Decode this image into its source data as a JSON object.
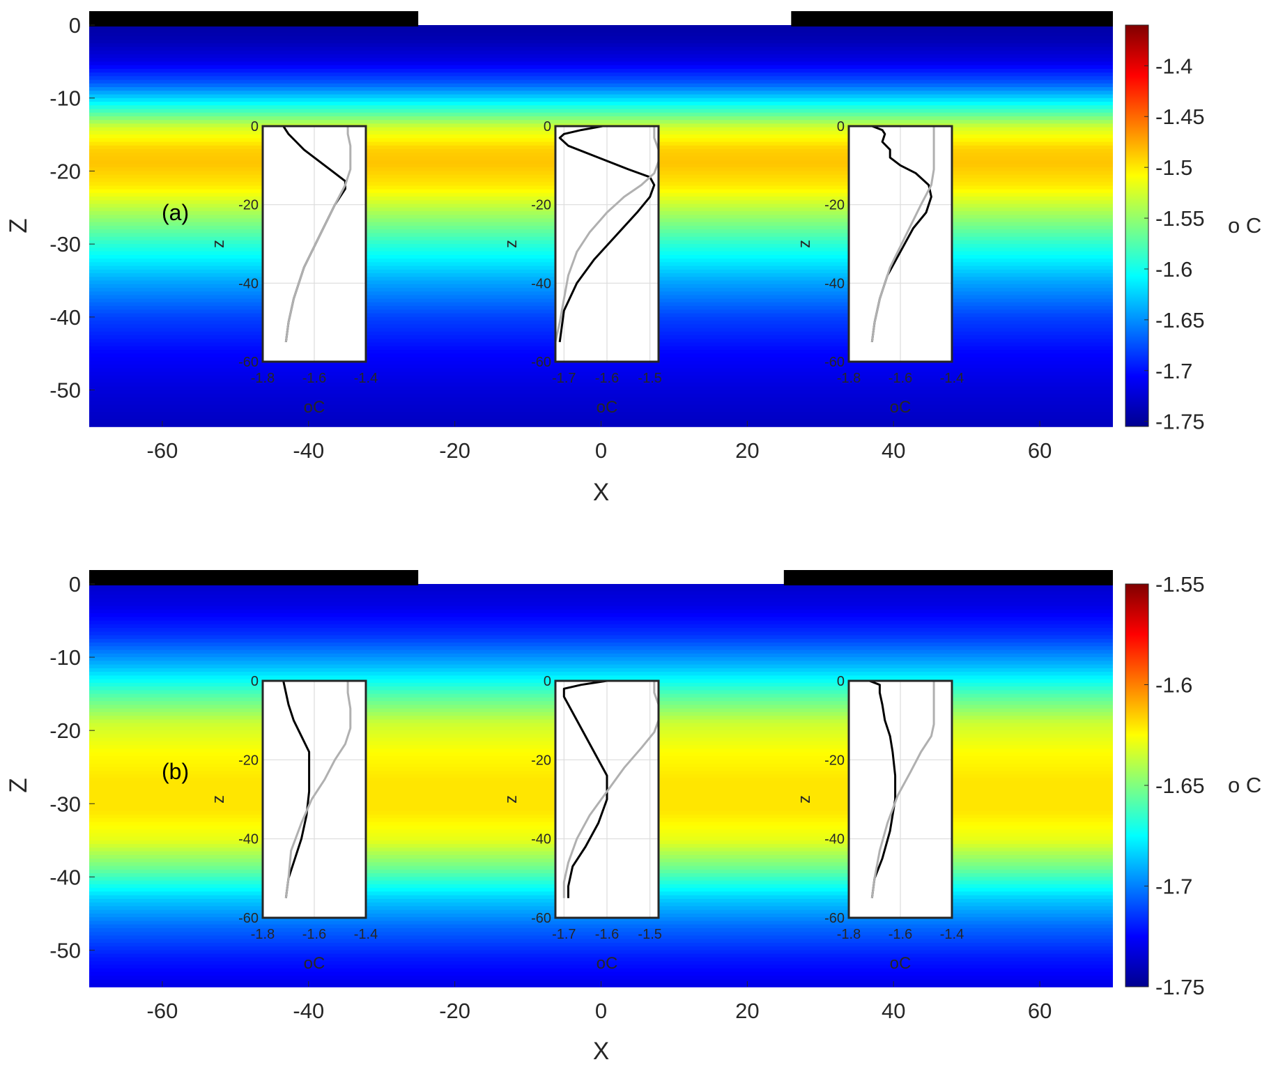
{
  "chart_data": [
    {
      "type": "heatmap",
      "panel_label": "(a)",
      "xlabel": "X",
      "ylabel": "Z",
      "xlim": [
        -70,
        70
      ],
      "ylim": [
        -55,
        0
      ],
      "x_ticks": [
        -60,
        -40,
        -20,
        0,
        20,
        40,
        60
      ],
      "y_ticks": [
        0,
        -10,
        -20,
        -30,
        -40,
        -50
      ],
      "ice_shelves": [
        [
          -70,
          -25
        ],
        [
          26,
          70
        ]
      ],
      "colorbar": {
        "unit": "o C",
        "range": [
          -1.755,
          -1.36
        ],
        "ticks": [
          -1.4,
          -1.45,
          -1.5,
          -1.55,
          -1.6,
          -1.65,
          -1.7,
          -1.75
        ],
        "tick_labels": [
          "-1.4",
          "-1.45",
          "-1.5",
          "-1.55",
          "-1.6",
          "-1.65",
          "-1.7",
          "-1.75"
        ]
      },
      "field_profile": {
        "z": [
          0,
          -2,
          -5,
          -8,
          -11,
          -14,
          -17,
          -19,
          -22,
          -26,
          -30,
          -35,
          -40,
          -45,
          -50,
          -55
        ],
        "value": [
          -1.74,
          -1.735,
          -1.715,
          -1.67,
          -1.6,
          -1.525,
          -1.49,
          -1.485,
          -1.5,
          -1.545,
          -1.59,
          -1.64,
          -1.68,
          -1.705,
          -1.72,
          -1.73
        ]
      },
      "insets": [
        {
          "xlabel": "oC",
          "ylabel": "z",
          "x_ticks": [
            "-1.8",
            "-1.6",
            "-1.4"
          ],
          "xlim": [
            -1.8,
            -1.4
          ],
          "y_ticks": [
            "0",
            "-20",
            "-40",
            "-60"
          ],
          "ylim": [
            -60,
            0
          ],
          "series": [
            {
              "color": "#000000",
              "x": [
                -1.72,
                -1.7,
                -1.67,
                -1.64,
                -1.6,
                -1.56,
                -1.52,
                -1.48,
                -1.48,
                -1.52,
                -1.58,
                -1.64,
                -1.68,
                -1.7,
                -1.71
              ],
              "z": [
                0,
                -2,
                -4,
                -6,
                -8,
                -10,
                -12,
                -14,
                -16,
                -20,
                -28,
                -36,
                -44,
                -50,
                -55
              ]
            },
            {
              "color": "#b0b0b0",
              "x": [
                -1.47,
                -1.47,
                -1.46,
                -1.46,
                -1.46,
                -1.48,
                -1.52,
                -1.58,
                -1.64,
                -1.68,
                -1.7,
                -1.71
              ],
              "z": [
                0,
                -2,
                -5,
                -8,
                -11,
                -15,
                -20,
                -28,
                -36,
                -44,
                -50,
                -55
              ]
            }
          ]
        },
        {
          "xlabel": "oC",
          "ylabel": "z",
          "x_ticks": [
            "-1.7",
            "-1.6",
            "-1.5"
          ],
          "xlim": [
            -1.72,
            -1.48
          ],
          "y_ticks": [
            "0",
            "-20",
            "-40",
            "-60"
          ],
          "ylim": [
            -60,
            0
          ],
          "series": [
            {
              "color": "#000000",
              "x": [
                -1.61,
                -1.66,
                -1.7,
                -1.71,
                -1.69,
                -1.62,
                -1.55,
                -1.5,
                -1.49,
                -1.5,
                -1.53,
                -1.58,
                -1.63,
                -1.67,
                -1.7,
                -1.71
              ],
              "z": [
                0,
                -1,
                -2,
                -3,
                -5,
                -8,
                -11,
                -13,
                -15,
                -18,
                -22,
                -28,
                -34,
                -40,
                -47,
                -55
              ]
            },
            {
              "color": "#b0b0b0",
              "x": [
                -1.49,
                -1.49,
                -1.48,
                -1.48,
                -1.49,
                -1.52,
                -1.56,
                -1.6,
                -1.64,
                -1.67,
                -1.69,
                -1.7,
                -1.71,
                -1.72
              ],
              "z": [
                0,
                -3,
                -6,
                -9,
                -12,
                -15,
                -18,
                -22,
                -27,
                -32,
                -38,
                -44,
                -50,
                -55
              ]
            }
          ]
        },
        {
          "xlabel": "oC",
          "ylabel": "z",
          "x_ticks": [
            "-1.8",
            "-1.6",
            "-1.4"
          ],
          "xlim": [
            -1.8,
            -1.4
          ],
          "y_ticks": [
            "0",
            "-20",
            "-40",
            "-60"
          ],
          "ylim": [
            -60,
            0
          ],
          "series": [
            {
              "color": "#000000",
              "x": [
                -1.71,
                -1.67,
                -1.66,
                -1.67,
                -1.64,
                -1.64,
                -1.6,
                -1.54,
                -1.49,
                -1.48,
                -1.5,
                -1.55,
                -1.6,
                -1.65,
                -1.68,
                -1.7,
                -1.71
              ],
              "z": [
                0,
                -1,
                -2,
                -4,
                -6,
                -8,
                -10,
                -12,
                -15,
                -18,
                -22,
                -26,
                -32,
                -38,
                -44,
                -50,
                -55
              ]
            },
            {
              "color": "#b0b0b0",
              "x": [
                -1.47,
                -1.47,
                -1.47,
                -1.47,
                -1.47,
                -1.48,
                -1.52,
                -1.58,
                -1.64,
                -1.68,
                -1.7,
                -1.71
              ],
              "z": [
                0,
                -2,
                -5,
                -8,
                -11,
                -15,
                -20,
                -28,
                -36,
                -44,
                -50,
                -55
              ]
            }
          ]
        }
      ]
    },
    {
      "type": "heatmap",
      "panel_label": "(b)",
      "xlabel": "X",
      "ylabel": "Z",
      "xlim": [
        -70,
        70
      ],
      "ylim": [
        -55,
        0
      ],
      "x_ticks": [
        -60,
        -40,
        -20,
        0,
        20,
        40,
        60
      ],
      "y_ticks": [
        0,
        -10,
        -20,
        -30,
        -40,
        -50
      ],
      "ice_shelves": [
        [
          -70,
          -25
        ],
        [
          25,
          70
        ]
      ],
      "colorbar": {
        "unit": "o C",
        "range": [
          -1.75,
          -1.55
        ],
        "ticks": [
          -1.55,
          -1.6,
          -1.65,
          -1.7,
          -1.75
        ],
        "tick_labels": [
          "-1.55",
          "-1.6",
          "-1.65",
          "-1.7",
          "-1.75"
        ]
      },
      "field_profile": {
        "z": [
          0,
          -3,
          -7,
          -11,
          -15,
          -19,
          -23,
          -27,
          -31,
          -35,
          -39,
          -43,
          -47,
          -51,
          -55
        ],
        "value": [
          -1.735,
          -1.73,
          -1.715,
          -1.69,
          -1.66,
          -1.635,
          -1.625,
          -1.62,
          -1.62,
          -1.63,
          -1.655,
          -1.685,
          -1.705,
          -1.72,
          -1.73
        ]
      },
      "insets": [
        {
          "xlabel": "oC",
          "ylabel": "z",
          "x_ticks": [
            "-1.8",
            "-1.6",
            "-1.4"
          ],
          "xlim": [
            -1.8,
            -1.4
          ],
          "y_ticks": [
            "0",
            "-20",
            "-40",
            "-60"
          ],
          "ylim": [
            -60,
            0
          ],
          "series": [
            {
              "color": "#000000",
              "x": [
                -1.72,
                -1.71,
                -1.7,
                -1.68,
                -1.65,
                -1.62,
                -1.62,
                -1.62,
                -1.63,
                -1.65,
                -1.68,
                -1.7,
                -1.71
              ],
              "z": [
                0,
                -3,
                -6,
                -10,
                -14,
                -18,
                -22,
                -28,
                -34,
                -40,
                -46,
                -50,
                -55
              ]
            },
            {
              "color": "#b0b0b0",
              "x": [
                -1.47,
                -1.47,
                -1.46,
                -1.46,
                -1.48,
                -1.52,
                -1.56,
                -1.61,
                -1.65,
                -1.69,
                -1.7,
                -1.71
              ],
              "z": [
                0,
                -3,
                -7,
                -12,
                -16,
                -20,
                -25,
                -30,
                -36,
                -43,
                -50,
                -55
              ]
            }
          ]
        },
        {
          "xlabel": "oC",
          "ylabel": "z",
          "x_ticks": [
            "-1.7",
            "-1.6",
            "-1.5"
          ],
          "xlim": [
            -1.72,
            -1.48
          ],
          "y_ticks": [
            "0",
            "-20",
            "-40",
            "-60"
          ],
          "ylim": [
            -60,
            0
          ],
          "series": [
            {
              "color": "#000000",
              "x": [
                -1.6,
                -1.66,
                -1.7,
                -1.7,
                -1.69,
                -1.66,
                -1.63,
                -1.6,
                -1.6,
                -1.62,
                -1.65,
                -1.68,
                -1.69,
                -1.69
              ],
              "z": [
                0,
                -1,
                -2,
                -4,
                -6,
                -12,
                -18,
                -24,
                -30,
                -36,
                -42,
                -47,
                -52,
                -55
              ]
            },
            {
              "color": "#b0b0b0",
              "x": [
                -1.49,
                -1.49,
                -1.48,
                -1.48,
                -1.49,
                -1.52,
                -1.56,
                -1.6,
                -1.64,
                -1.67,
                -1.69,
                -1.7,
                -1.7
              ],
              "z": [
                0,
                -3,
                -6,
                -10,
                -13,
                -17,
                -22,
                -28,
                -34,
                -40,
                -46,
                -51,
                -55
              ]
            }
          ]
        },
        {
          "xlabel": "oC",
          "ylabel": "z",
          "x_ticks": [
            "-1.8",
            "-1.6",
            "-1.4"
          ],
          "xlim": [
            -1.8,
            -1.4
          ],
          "y_ticks": [
            "0",
            "-20",
            "-40",
            "-60"
          ],
          "ylim": [
            -60,
            0
          ],
          "series": [
            {
              "color": "#000000",
              "x": [
                -1.72,
                -1.68,
                -1.68,
                -1.67,
                -1.66,
                -1.64,
                -1.63,
                -1.62,
                -1.62,
                -1.64,
                -1.67,
                -1.7,
                -1.71
              ],
              "z": [
                0,
                -1,
                -3,
                -6,
                -10,
                -14,
                -18,
                -24,
                -30,
                -38,
                -45,
                -50,
                -55
              ]
            },
            {
              "color": "#b0b0b0",
              "x": [
                -1.47,
                -1.47,
                -1.47,
                -1.47,
                -1.48,
                -1.52,
                -1.56,
                -1.61,
                -1.65,
                -1.68,
                -1.7,
                -1.71
              ],
              "z": [
                0,
                -3,
                -7,
                -11,
                -14,
                -18,
                -23,
                -29,
                -36,
                -43,
                -50,
                -55
              ]
            }
          ]
        }
      ]
    }
  ]
}
